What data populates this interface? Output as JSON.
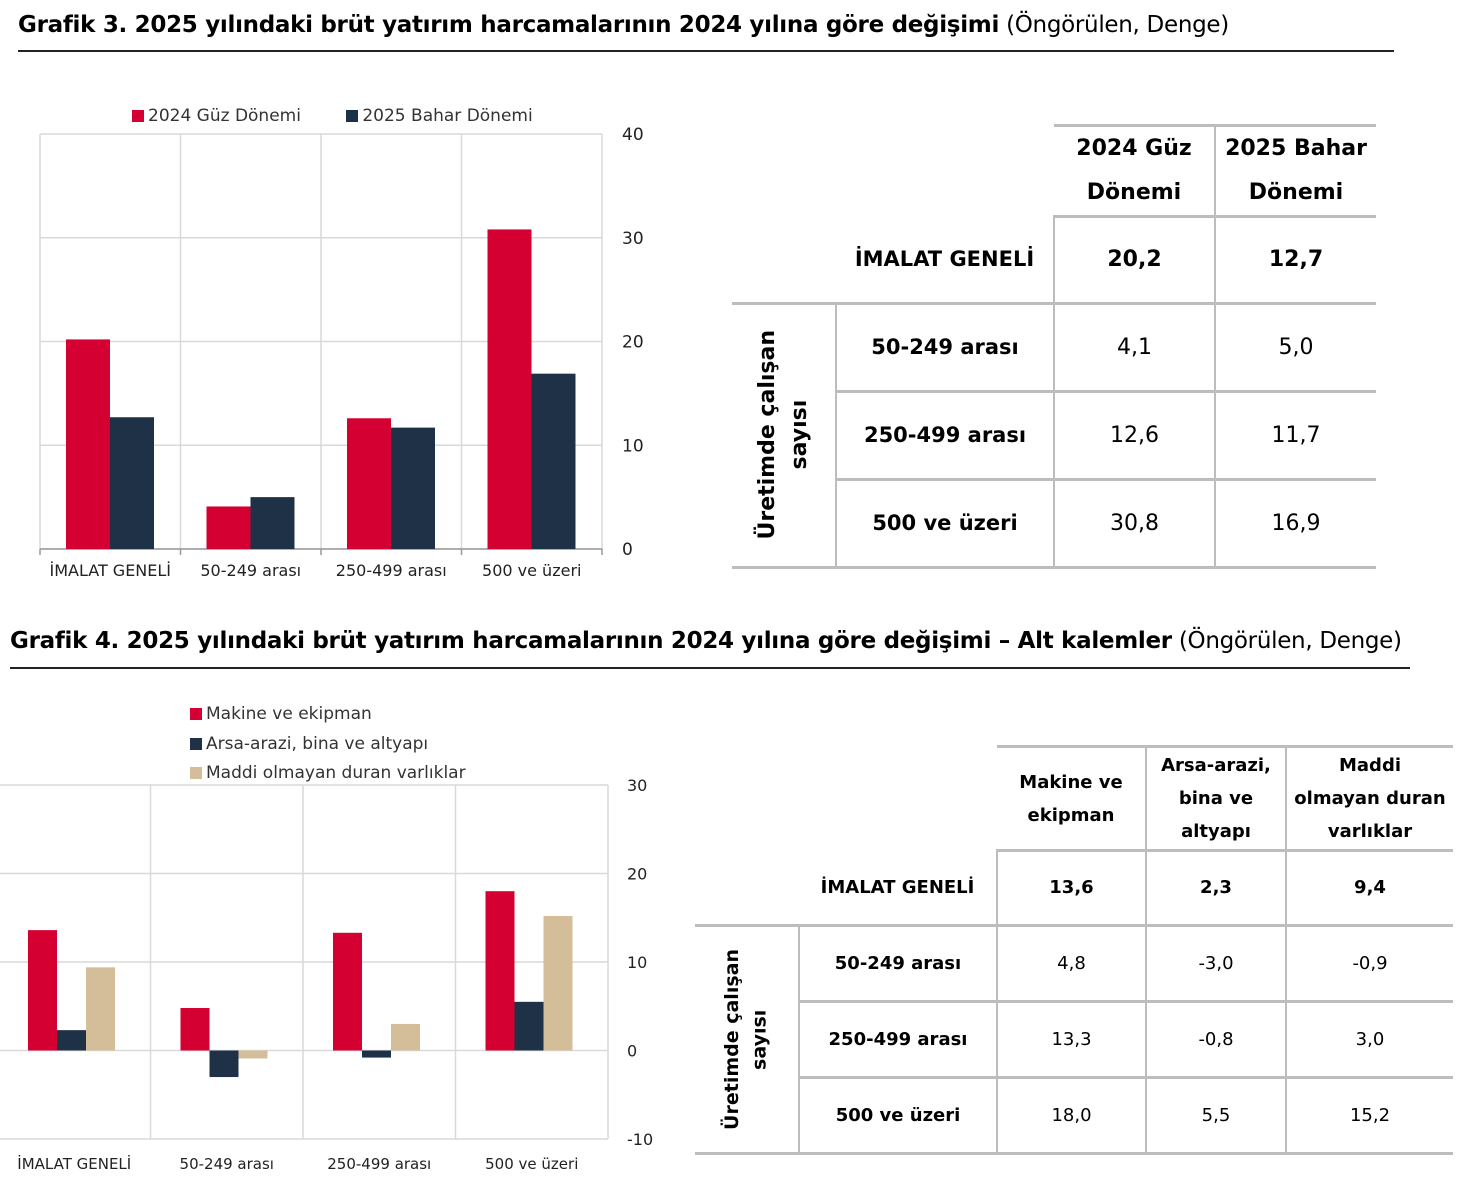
{
  "grafik3": {
    "title_bold": "Grafik 3. 2025 yılındaki brüt yatırım harcamalarının 2024 yılına göre değişimi",
    "title_sub": "(Öngörülen, Denge)",
    "table": {
      "headers": [
        "2024 Güz Dönemi",
        "2025 Bahar Dönemi"
      ],
      "header_lines": [
        [
          "2024 Güz",
          "Dönemi"
        ],
        [
          "2025 Bahar",
          "Dönemi"
        ]
      ],
      "group_label_lines": [
        "Üretimde çalışan",
        "sayısı"
      ],
      "rows": [
        {
          "label": "İMALAT GENELİ",
          "values": [
            "20,2",
            "12,7"
          ],
          "bold": true
        },
        {
          "label": "50-249 arası",
          "values": [
            "4,1",
            "5,0"
          ],
          "bold": false
        },
        {
          "label": "250-499 arası",
          "values": [
            "12,6",
            "11,7"
          ],
          "bold": false
        },
        {
          "label": "500 ve üzeri",
          "values": [
            "30,8",
            "16,9"
          ],
          "bold": false
        }
      ]
    }
  },
  "grafik4": {
    "title_bold": "Grafik 4. 2025 yılındaki brüt yatırım harcamalarının 2024 yılına göre değişimi – Alt kalemler",
    "title_sub": "(Öngörülen, Denge)",
    "table": {
      "headers": [
        "Makine ve ekipman",
        "Arsa-arazi, bina ve altyapı",
        "Maddi olmayan duran varlıklar"
      ],
      "header_lines": [
        [
          "Makine ve",
          "ekipman"
        ],
        [
          "Arsa-arazi,",
          "bina ve",
          "altyapı"
        ],
        [
          "Maddi",
          "olmayan duran",
          "varlıklar"
        ]
      ],
      "group_label_lines": [
        "Üretimde çalışan",
        "sayısı"
      ],
      "rows": [
        {
          "label": "İMALAT GENELİ",
          "values": [
            "13,6",
            "2,3",
            "9,4"
          ],
          "bold": true
        },
        {
          "label": "50-249 arası",
          "values": [
            "4,8",
            "-3,0",
            "-0,9"
          ],
          "bold": false
        },
        {
          "label": "250-499 arası",
          "values": [
            "13,3",
            "-0,8",
            "3,0"
          ],
          "bold": false
        },
        {
          "label": "500 ve üzeri",
          "values": [
            "18,0",
            "5,5",
            "15,2"
          ],
          "bold": false
        }
      ]
    }
  },
  "colors": {
    "red": "#D50032",
    "navy": "#1F3147",
    "tan": "#D4BE9A"
  },
  "chart_data": [
    {
      "type": "bar",
      "title": "Grafik 3. 2025 yılındaki brüt yatırım harcamalarının 2024 yılına göre değişimi (Öngörülen, Denge)",
      "categories": [
        "İMALAT GENELİ",
        "50-249 arası",
        "250-499 arası",
        "500 ve üzeri"
      ],
      "series": [
        {
          "name": "2024 Güz Dönemi",
          "values": [
            20.2,
            4.1,
            12.6,
            30.8
          ],
          "color": "#D50032"
        },
        {
          "name": "2025 Bahar Dönemi",
          "values": [
            12.7,
            5.0,
            11.7,
            16.9
          ],
          "color": "#1F3147"
        }
      ],
      "xlabel": "",
      "ylabel": "",
      "ylim": [
        0,
        40
      ],
      "yticks": [
        0,
        10,
        20,
        30,
        40
      ],
      "y_axis_side": "right",
      "grid": true,
      "legend": "top"
    },
    {
      "type": "bar",
      "title": "Grafik 4. 2025 yılındaki brüt yatırım harcamalarının 2024 yılına göre değişimi – Alt kalemler (Öngörülen, Denge)",
      "categories": [
        "İMALAT GENELİ",
        "50-249 arası",
        "250-499 arası",
        "500 ve üzeri"
      ],
      "series": [
        {
          "name": "Makine ve ekipman",
          "values": [
            13.6,
            4.8,
            13.3,
            18.0
          ],
          "color": "#D50032"
        },
        {
          "name": "Arsa-arazi, bina ve altyapı",
          "values": [
            2.3,
            -3.0,
            -0.8,
            5.5
          ],
          "color": "#1F3147"
        },
        {
          "name": "Maddi olmayan duran varlıklar",
          "values": [
            9.4,
            -0.9,
            3.0,
            15.2
          ],
          "color": "#D4BE9A"
        }
      ],
      "xlabel": "",
      "ylabel": "",
      "ylim": [
        -10,
        30
      ],
      "yticks": [
        -10,
        0,
        10,
        20,
        30
      ],
      "y_axis_side": "right",
      "grid": true,
      "legend": "top"
    }
  ]
}
